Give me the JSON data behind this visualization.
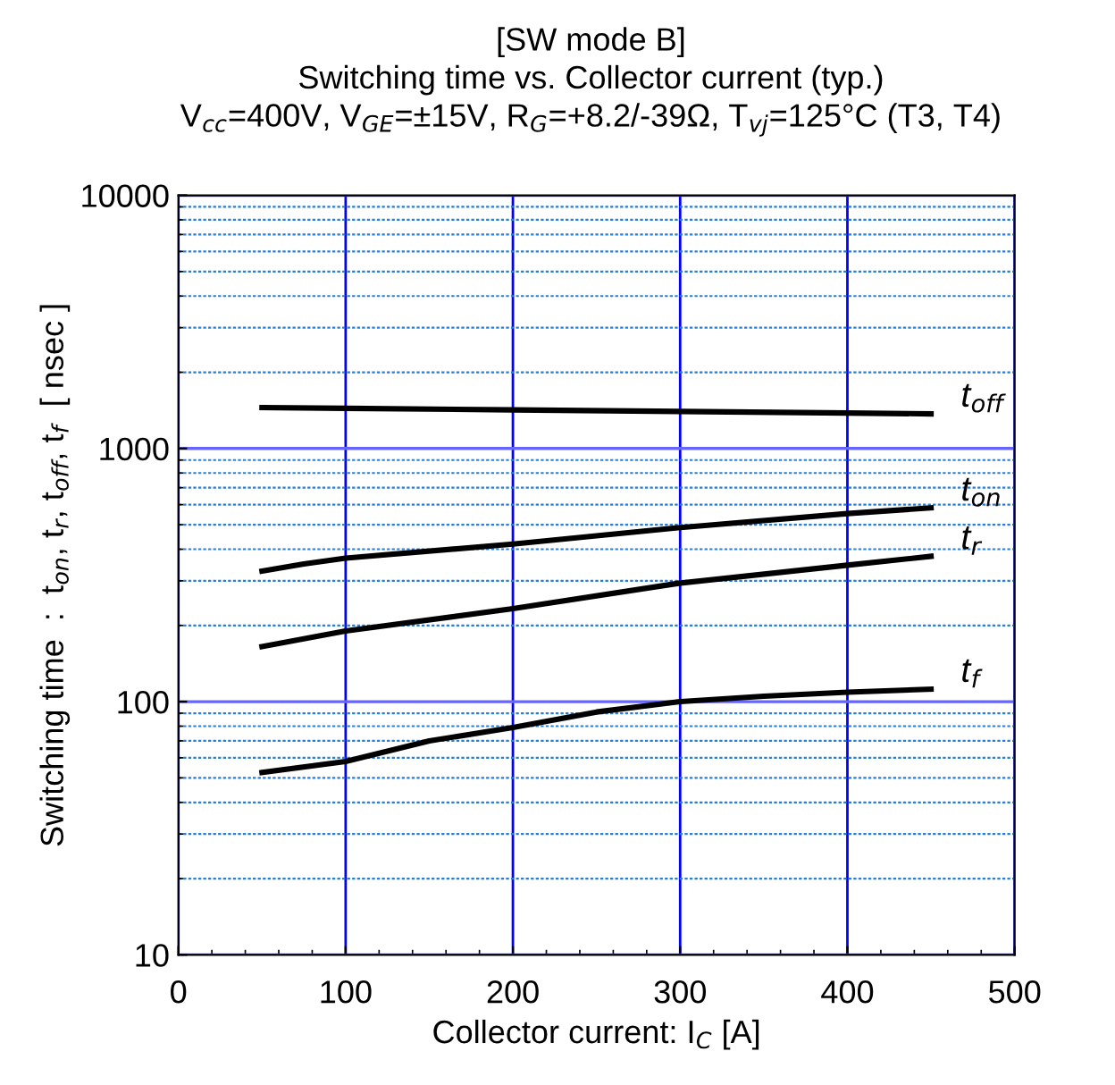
{
  "chart_data": {
    "type": "line",
    "title": "[SW mode B]",
    "subtitle": "Switching time vs. Collector current (typ.)",
    "annotations": [
      "V$_{cc}$=400V, V$_{GE}$=±15V, R$_{G}$=+8.2/-39Ω, T$_{vj}$=125°C (T3, T4)"
    ],
    "xlabel": "Collector current: I$_{C}$ [A]",
    "ylabel": "Switching time  :  t$_{on}$, t$_{r}$, t$_{off}$, t$_{f}$  [ nsec ]",
    "log": "y",
    "xlim": [
      0,
      500
    ],
    "xticks": [
      0,
      {
        "value": 20,
        "label": null
      },
      {
        "value": 40,
        "label": null
      },
      {
        "value": 60,
        "label": null
      },
      {
        "value": 80,
        "label": null
      },
      100,
      {
        "value": 120,
        "label": null
      },
      {
        "value": 140,
        "label": null
      },
      {
        "value": 160,
        "label": null
      },
      {
        "value": 180,
        "label": null
      },
      200,
      {
        "value": 220,
        "label": null
      },
      {
        "value": 240,
        "label": null
      },
      {
        "value": 260,
        "label": null
      },
      {
        "value": 280,
        "label": null
      },
      300,
      {
        "value": 320,
        "label": null
      },
      {
        "value": 340,
        "label": null
      },
      {
        "value": 360,
        "label": null
      },
      {
        "value": 380,
        "label": null
      },
      400,
      {
        "value": 420,
        "label": null
      },
      {
        "value": 440,
        "label": null
      },
      {
        "value": 460,
        "label": null
      },
      {
        "value": 480,
        "label": null
      },
      500
    ],
    "ylim": [
      10,
      10000
    ],
    "yticks": [
      10,
      {
        "value": 20,
        "label": null
      },
      {
        "value": 30,
        "label": null
      },
      {
        "value": 40,
        "label": null
      },
      {
        "value": 50,
        "label": null
      },
      {
        "value": 60,
        "label": null
      },
      {
        "value": 70,
        "label": null
      },
      {
        "value": 80,
        "label": null
      },
      {
        "value": 90,
        "label": null
      },
      100,
      {
        "value": 200,
        "label": null
      },
      {
        "value": 300,
        "label": null
      },
      {
        "value": 400,
        "label": null
      },
      {
        "value": 500,
        "label": null
      },
      {
        "value": 600,
        "label": null
      },
      {
        "value": 700,
        "label": null
      },
      {
        "value": 800,
        "label": null
      },
      {
        "value": 900,
        "label": null
      },
      1000,
      {
        "value": 2000,
        "label": null
      },
      {
        "value": 3000,
        "label": null
      },
      {
        "value": 4000,
        "label": null
      },
      {
        "value": 5000,
        "label": null
      },
      {
        "value": 6000,
        "label": null
      },
      {
        "value": 7000,
        "label": null
      },
      {
        "value": 8000,
        "label": null
      },
      {
        "value": 9000,
        "label": null
      },
      10000
    ],
    "grid": true,
    "legend": false,
    "marker": "none",
    "line_style": "solid",
    "series": [
      {
        "name": "t$_{off}$",
        "color": "#000000",
        "x": [
          50,
          100,
          200,
          300,
          400,
          450
        ],
        "values": [
          1450,
          1440,
          1420,
          1400,
          1380,
          1370
        ]
      },
      {
        "name": "t$_{on}$",
        "color": "#000000",
        "x": [
          50,
          75,
          100,
          200,
          300,
          400,
          450
        ],
        "values": [
          328,
          350,
          369,
          419,
          487,
          553,
          583
        ]
      },
      {
        "name": "t$_{r}$",
        "color": "#000000",
        "x": [
          50,
          100,
          200,
          300,
          400,
          450
        ],
        "values": [
          165,
          190,
          233,
          294,
          346,
          375
        ]
      },
      {
        "name": "t$_{f}$",
        "color": "#000000",
        "x": [
          50,
          100,
          150,
          200,
          250,
          300,
          350,
          400,
          450
        ],
        "values": [
          52.5,
          58,
          70,
          79,
          91,
          100,
          105,
          109,
          112
        ]
      }
    ]
  }
}
